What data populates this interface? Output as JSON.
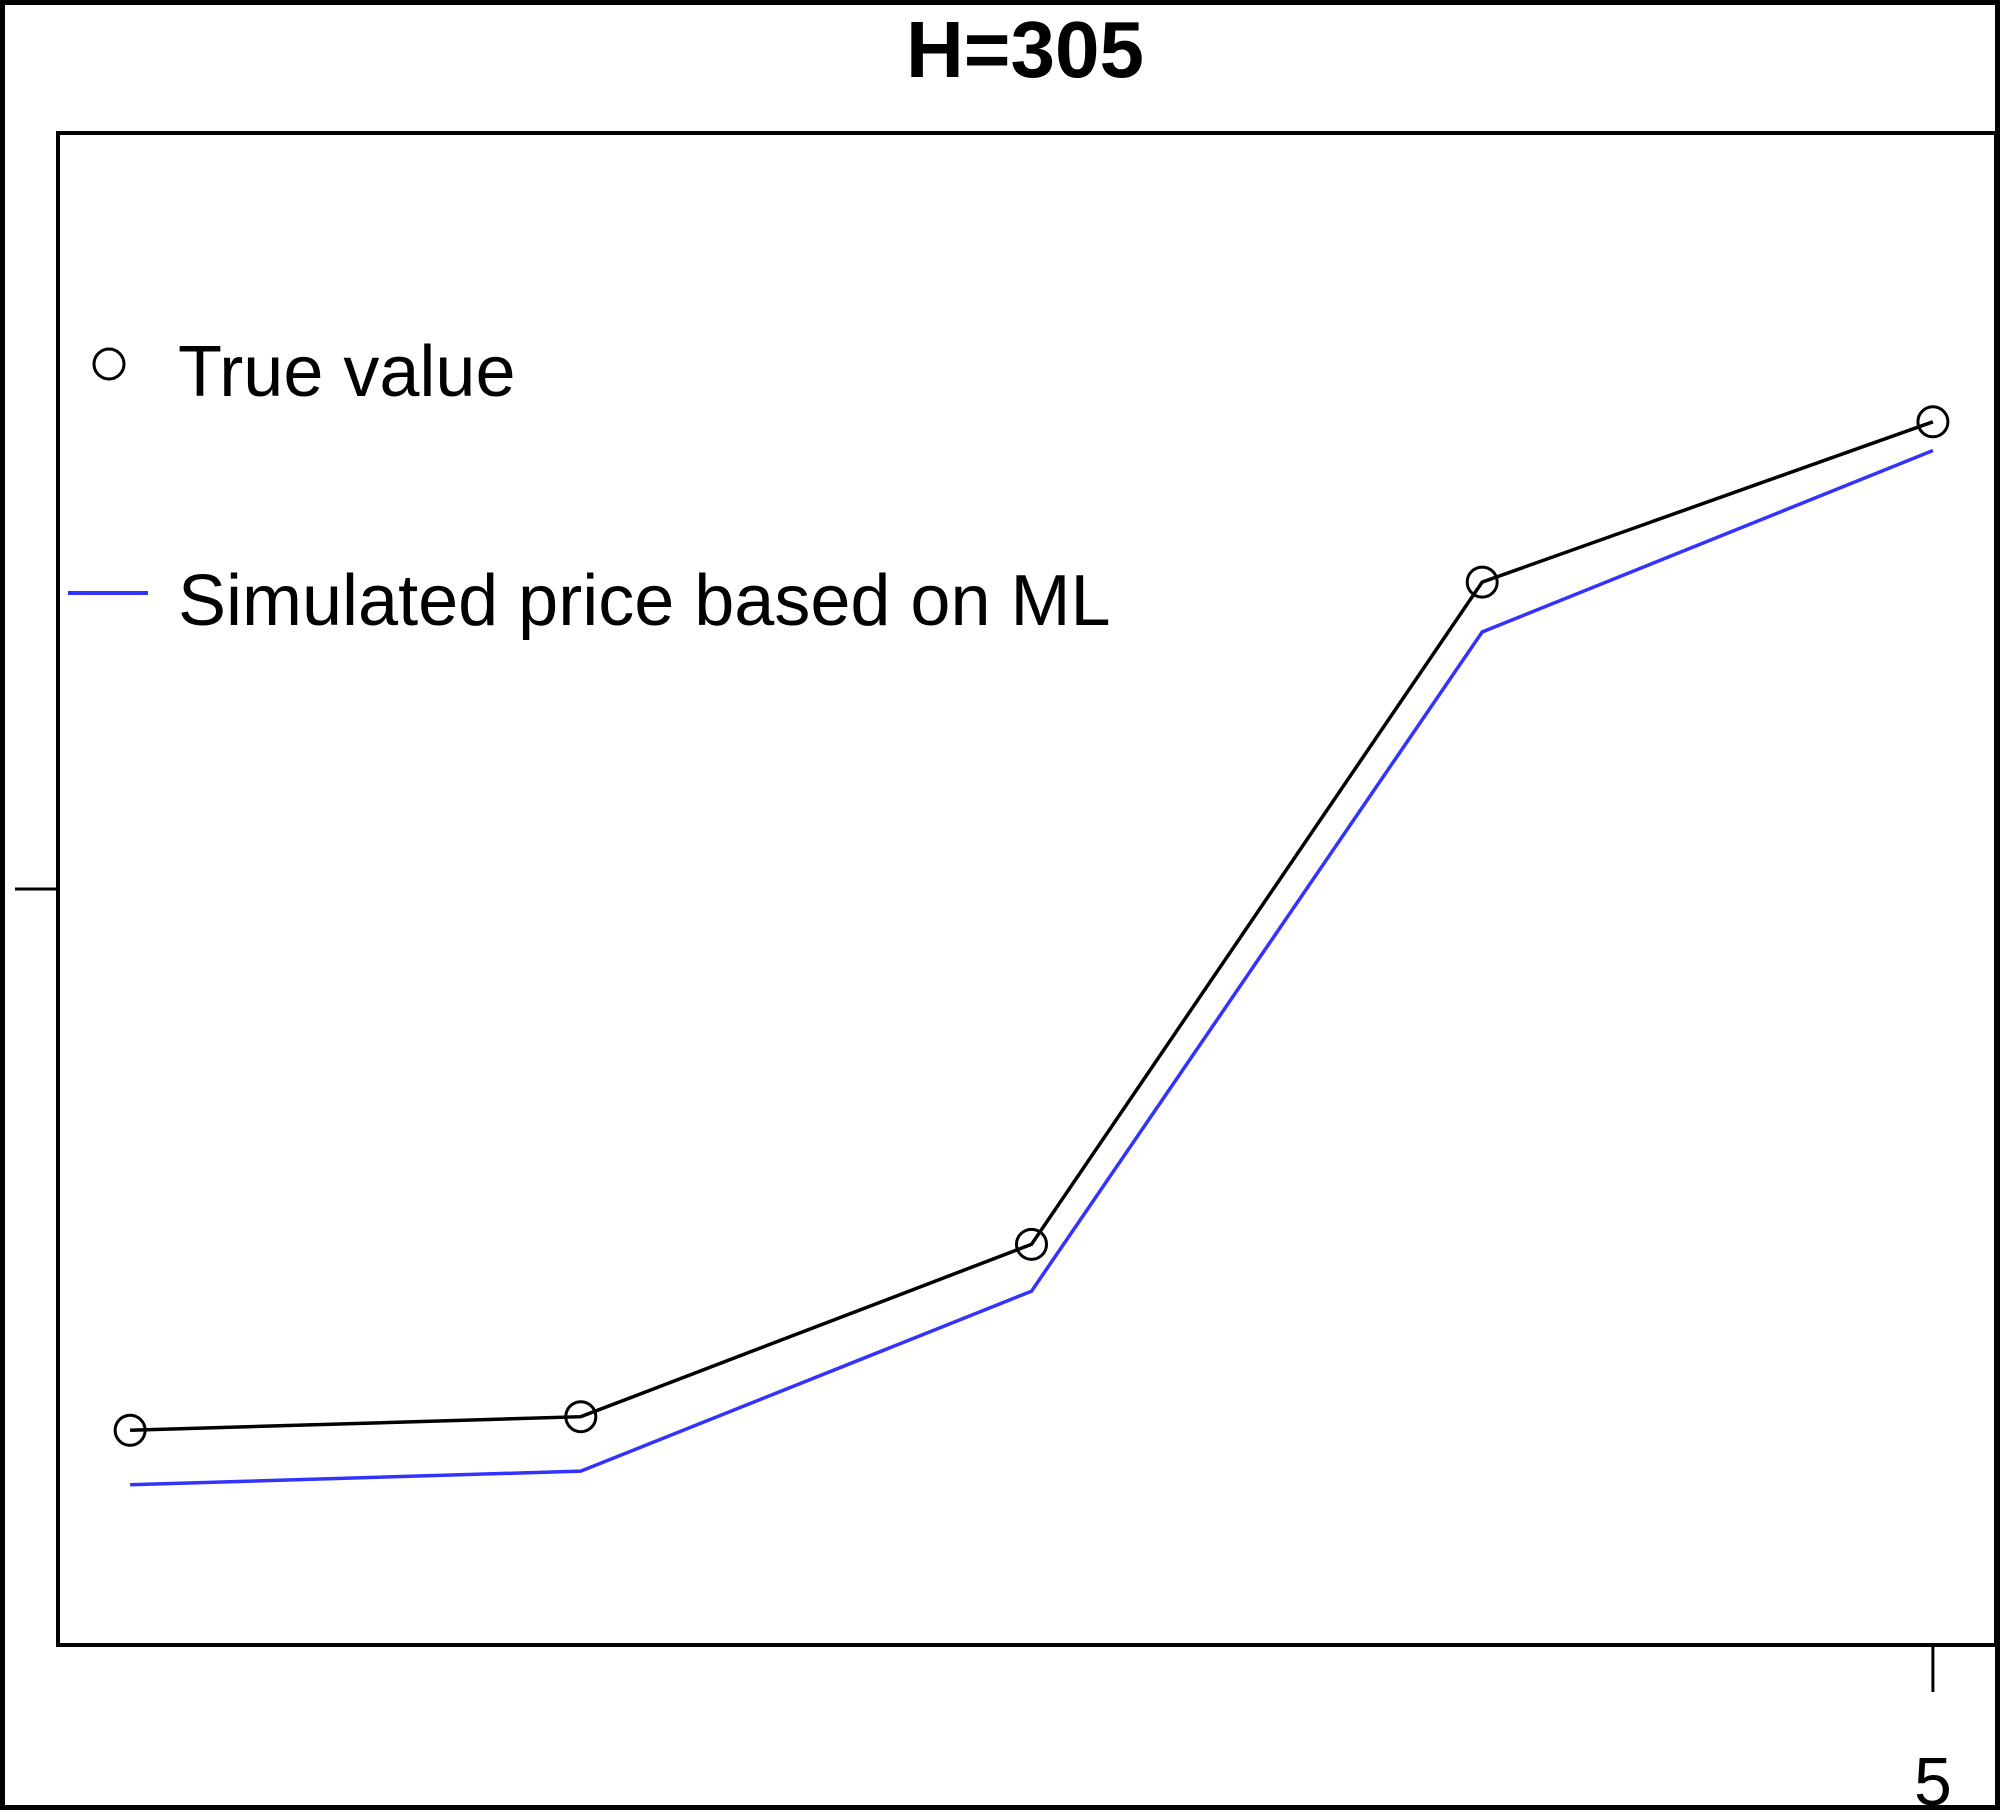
{
  "chart_data": {
    "type": "line",
    "title": "H=305",
    "xlabel": "",
    "ylabel": "",
    "x": [
      1,
      2,
      3,
      4,
      5
    ],
    "xlim": [
      0.84,
      5.14
    ],
    "ylim": [
      0,
      100
    ],
    "x_tick_labels": [
      {
        "x": 5,
        "label": "5"
      }
    ],
    "y_ticks": [
      50
    ],
    "grid": false,
    "legend_position": "top-left",
    "series": [
      {
        "name": "True value",
        "style": "line-with-circles",
        "color": "#000000",
        "values": [
          14.2,
          15.1,
          26.5,
          70.3,
          80.9
        ]
      },
      {
        "name": "Simulated price based on ML",
        "style": "line",
        "color": "#3333ff",
        "values": [
          10.6,
          11.5,
          23.4,
          67.0,
          79.0
        ]
      }
    ]
  }
}
